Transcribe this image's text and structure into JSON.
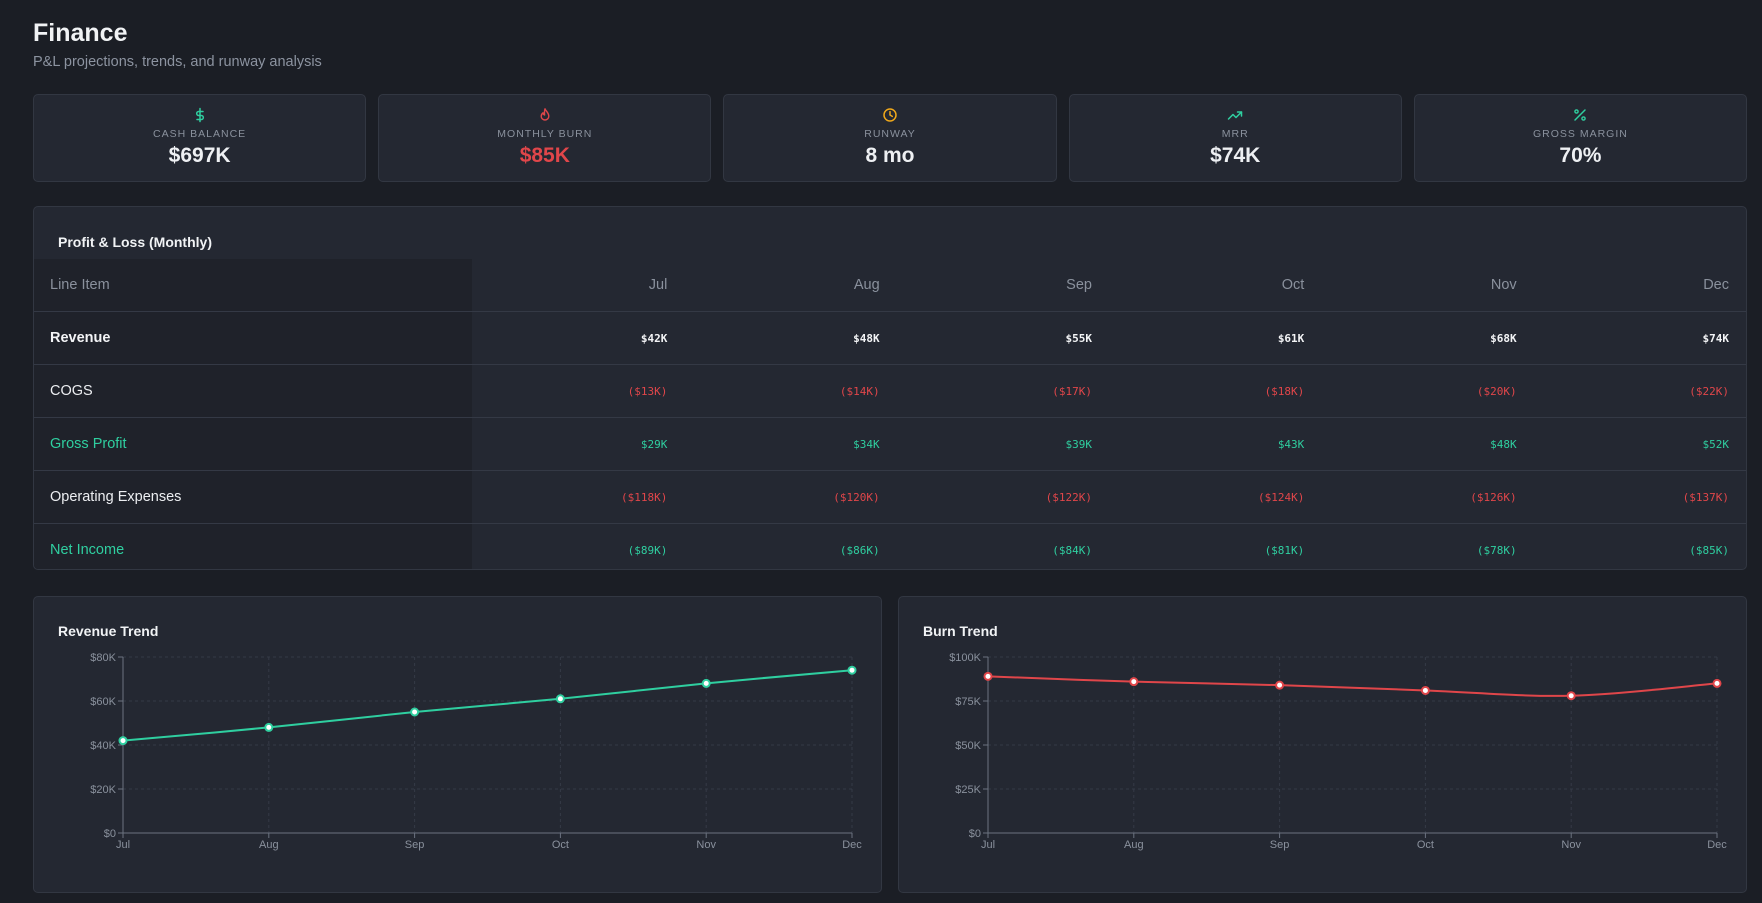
{
  "header": {
    "title": "Finance",
    "subtitle": "P&L projections, trends, and runway analysis"
  },
  "kpis": [
    {
      "label": "CASH BALANCE",
      "value": "$697K",
      "icon": "dollar-icon",
      "icon_color": "#2fcfa0",
      "value_color": "#eef0f3"
    },
    {
      "label": "MONTHLY BURN",
      "value": "$85K",
      "icon": "flame-icon",
      "icon_color": "#e0464a",
      "value_color": "#e0464a"
    },
    {
      "label": "RUNWAY",
      "value": "8 mo",
      "icon": "clock-icon",
      "icon_color": "#f0a81a",
      "value_color": "#eef0f3"
    },
    {
      "label": "MRR",
      "value": "$74K",
      "icon": "trending-up-icon",
      "icon_color": "#2fcfa0",
      "value_color": "#eef0f3"
    },
    {
      "label": "GROSS MARGIN",
      "value": "70%",
      "icon": "percent-icon",
      "icon_color": "#2fcfa0",
      "value_color": "#eef0f3"
    }
  ],
  "pl": {
    "title": "Profit & Loss (Monthly)",
    "header_label": "Line Item",
    "months": [
      "Jul",
      "Aug",
      "Sep",
      "Oct",
      "Nov",
      "Dec"
    ],
    "rows": [
      {
        "label": "Revenue",
        "style": "bold-white",
        "values": [
          "$42K",
          "$48K",
          "$55K",
          "$61K",
          "$68K",
          "$74K"
        ]
      },
      {
        "label": "COGS",
        "style": "plain-white",
        "value_style": "red",
        "values": [
          "($13K)",
          "($14K)",
          "($17K)",
          "($18K)",
          "($20K)",
          "($22K)"
        ]
      },
      {
        "label": "Gross Profit",
        "style": "green",
        "value_style": "green",
        "values": [
          "$29K",
          "$34K",
          "$39K",
          "$43K",
          "$48K",
          "$52K"
        ]
      },
      {
        "label": "Operating Expenses",
        "style": "plain-white",
        "value_style": "red",
        "values": [
          "($118K)",
          "($120K)",
          "($122K)",
          "($124K)",
          "($126K)",
          "($137K)"
        ]
      },
      {
        "label": "Net Income",
        "style": "green",
        "value_style": "green",
        "values": [
          "($89K)",
          "($86K)",
          "($84K)",
          "($81K)",
          "($78K)",
          "($85K)"
        ]
      }
    ]
  },
  "chart_data": [
    {
      "type": "line",
      "title": "Revenue Trend",
      "categories": [
        "Jul",
        "Aug",
        "Sep",
        "Oct",
        "Nov",
        "Dec"
      ],
      "series": [
        {
          "values": [
            42,
            48,
            55,
            61,
            68,
            74
          ],
          "color": "#2fcfa0"
        }
      ],
      "y_unit": "K",
      "ylim": [
        0,
        80
      ],
      "yticks": [
        0,
        20,
        40,
        60,
        80
      ],
      "ytick_labels": [
        "$0",
        "$20K",
        "$40K",
        "$60K",
        "$80K"
      ],
      "grid": true
    },
    {
      "type": "line",
      "title": "Burn Trend",
      "categories": [
        "Jul",
        "Aug",
        "Sep",
        "Oct",
        "Nov",
        "Dec"
      ],
      "series": [
        {
          "values": [
            89,
            86,
            84,
            81,
            78,
            85
          ],
          "color": "#e0464a"
        }
      ],
      "y_unit": "K",
      "ylim": [
        0,
        100
      ],
      "yticks": [
        0,
        25,
        50,
        75,
        100
      ],
      "ytick_labels": [
        "$0",
        "$25K",
        "$50K",
        "$75K",
        "$100K"
      ],
      "grid": true
    }
  ]
}
